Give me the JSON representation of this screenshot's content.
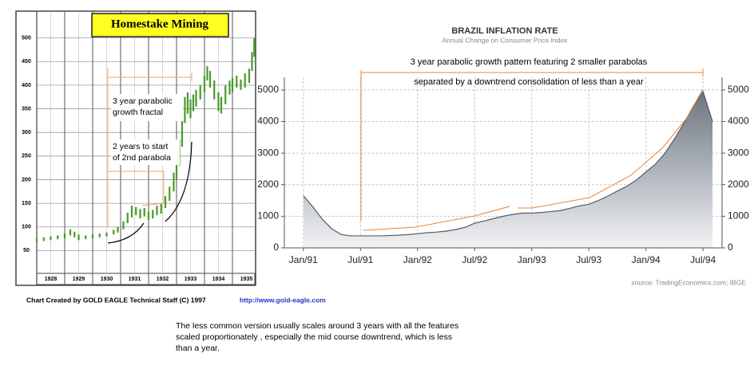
{
  "chart_data": [
    {
      "type": "range",
      "title": "Homestake Mining",
      "x": [
        1928.0,
        1928.25,
        1928.5,
        1928.75,
        1929.0,
        1929.2,
        1929.35,
        1929.5,
        1929.75,
        1930.0,
        1930.25,
        1930.5,
        1930.75,
        1930.9,
        1931.1,
        1931.25,
        1931.4,
        1931.55,
        1931.7,
        1931.85,
        1932.0,
        1932.15,
        1932.3,
        1932.45,
        1932.6,
        1932.75,
        1932.9,
        1933.0,
        1933.1,
        1933.2,
        1933.3,
        1933.4,
        1933.5,
        1933.6,
        1933.7,
        1933.85,
        1934.0,
        1934.1,
        1934.2,
        1934.35,
        1934.5,
        1934.6,
        1934.75,
        1934.9,
        1935.0,
        1935.15,
        1935.3,
        1935.45,
        1935.6,
        1935.7,
        1935.78
      ],
      "series": [
        {
          "color": "#4a9a2a",
          "values": [
            68,
            70,
            72,
            74,
            76,
            82,
            78,
            72,
            74,
            76,
            78,
            80,
            84,
            88,
            95,
            108,
            120,
            125,
            118,
            122,
            115,
            118,
            125,
            128,
            140,
            155,
            175,
            200,
            230,
            270,
            320,
            340,
            330,
            345,
            355,
            370,
            385,
            410,
            395,
            370,
            345,
            340,
            360,
            380,
            385,
            395,
            390,
            395,
            405,
            430,
            460
          ]
        },
        {
          "color": "#4a9a2a",
          "values": [
            76,
            78,
            80,
            82,
            86,
            95,
            90,
            84,
            82,
            84,
            86,
            88,
            94,
            100,
            112,
            130,
            145,
            142,
            138,
            140,
            132,
            136,
            145,
            150,
            165,
            185,
            215,
            245,
            285,
            330,
            375,
            385,
            370,
            380,
            390,
            400,
            420,
            440,
            430,
            410,
            385,
            375,
            400,
            410,
            415,
            420,
            412,
            425,
            435,
            470,
            500
          ]
        }
      ],
      "categories": [
        "1928",
        "1929",
        "1930",
        "1931",
        "1932",
        "1933",
        "1934",
        "1935"
      ],
      "xlim": [
        1928,
        1935.8
      ],
      "ylim": [
        0,
        550
      ],
      "yticks": [
        50,
        100,
        150,
        200,
        250,
        300,
        350,
        400,
        450,
        500
      ],
      "grid": true,
      "annotations": [
        "3 year parabolic",
        "growth fractal",
        "2 years to start",
        "of 2nd parabola"
      ]
    },
    {
      "type": "area",
      "title": "BRAZIL INFLATION RATE",
      "subtitle": "Annual Change on Consumer Price Index",
      "x": [
        "1991-01",
        "1991-02",
        "1991-03",
        "1991-04",
        "1991-05",
        "1991-06",
        "1991-07",
        "1991-08",
        "1991-09",
        "1991-10",
        "1991-11",
        "1991-12",
        "1992-01",
        "1992-02",
        "1992-03",
        "1992-04",
        "1992-05",
        "1992-06",
        "1992-07",
        "1992-08",
        "1992-09",
        "1992-10",
        "1992-11",
        "1992-12",
        "1993-01",
        "1993-02",
        "1993-03",
        "1993-04",
        "1993-05",
        "1993-06",
        "1993-07",
        "1993-08",
        "1993-09",
        "1993-10",
        "1993-11",
        "1993-12",
        "1994-01",
        "1994-02",
        "1994-03",
        "1994-04",
        "1994-05",
        "1994-06",
        "1994-07",
        "1994-08"
      ],
      "values": [
        1650,
        1300,
        900,
        600,
        420,
        380,
        380,
        380,
        380,
        390,
        400,
        420,
        450,
        480,
        500,
        530,
        580,
        650,
        780,
        850,
        930,
        1000,
        1060,
        1100,
        1100,
        1120,
        1150,
        1180,
        1250,
        1330,
        1380,
        1500,
        1640,
        1800,
        1950,
        2150,
        2400,
        2650,
        3000,
        3450,
        3950,
        4500,
        4950,
        4000
      ],
      "color": "#555c66",
      "xlim": [
        "1990-11",
        "1994-09"
      ],
      "xticks": [
        {
          "value": "1991-01",
          "label": "Jan/91"
        },
        {
          "value": "1991-07",
          "label": "Jul/91"
        },
        {
          "value": "1992-01",
          "label": "Jan/92"
        },
        {
          "value": "1992-07",
          "label": "Jul/92"
        },
        {
          "value": "1993-01",
          "label": "Jan/93"
        },
        {
          "value": "1993-07",
          "label": "Jul/93"
        },
        {
          "value": "1994-01",
          "label": "Jan/94"
        },
        {
          "value": "1994-07",
          "label": "Jul/94"
        }
      ],
      "ylim": [
        0,
        5400
      ],
      "yticks": [
        0,
        1000,
        2000,
        3000,
        4000,
        5000
      ],
      "grid": true,
      "mirror_y_axis": true,
      "annotations": [
        "3 year parabolic growth pattern featuring 2 smaller parabolas",
        "separated by a downtrend consolidation of less than a year"
      ],
      "source": "source: TradingEconomics.com; IBGE"
    }
  ],
  "footer": {
    "credit": "Chart Created by GOLD EAGLE Technical Staff (C) 1997",
    "url": "http://www.gold-eagle.com",
    "note": [
      "The less common version usually scales around 3 years with all the features",
      "scaled proportionately , especially the mid course downtrend, which is less",
      "than a year."
    ]
  }
}
